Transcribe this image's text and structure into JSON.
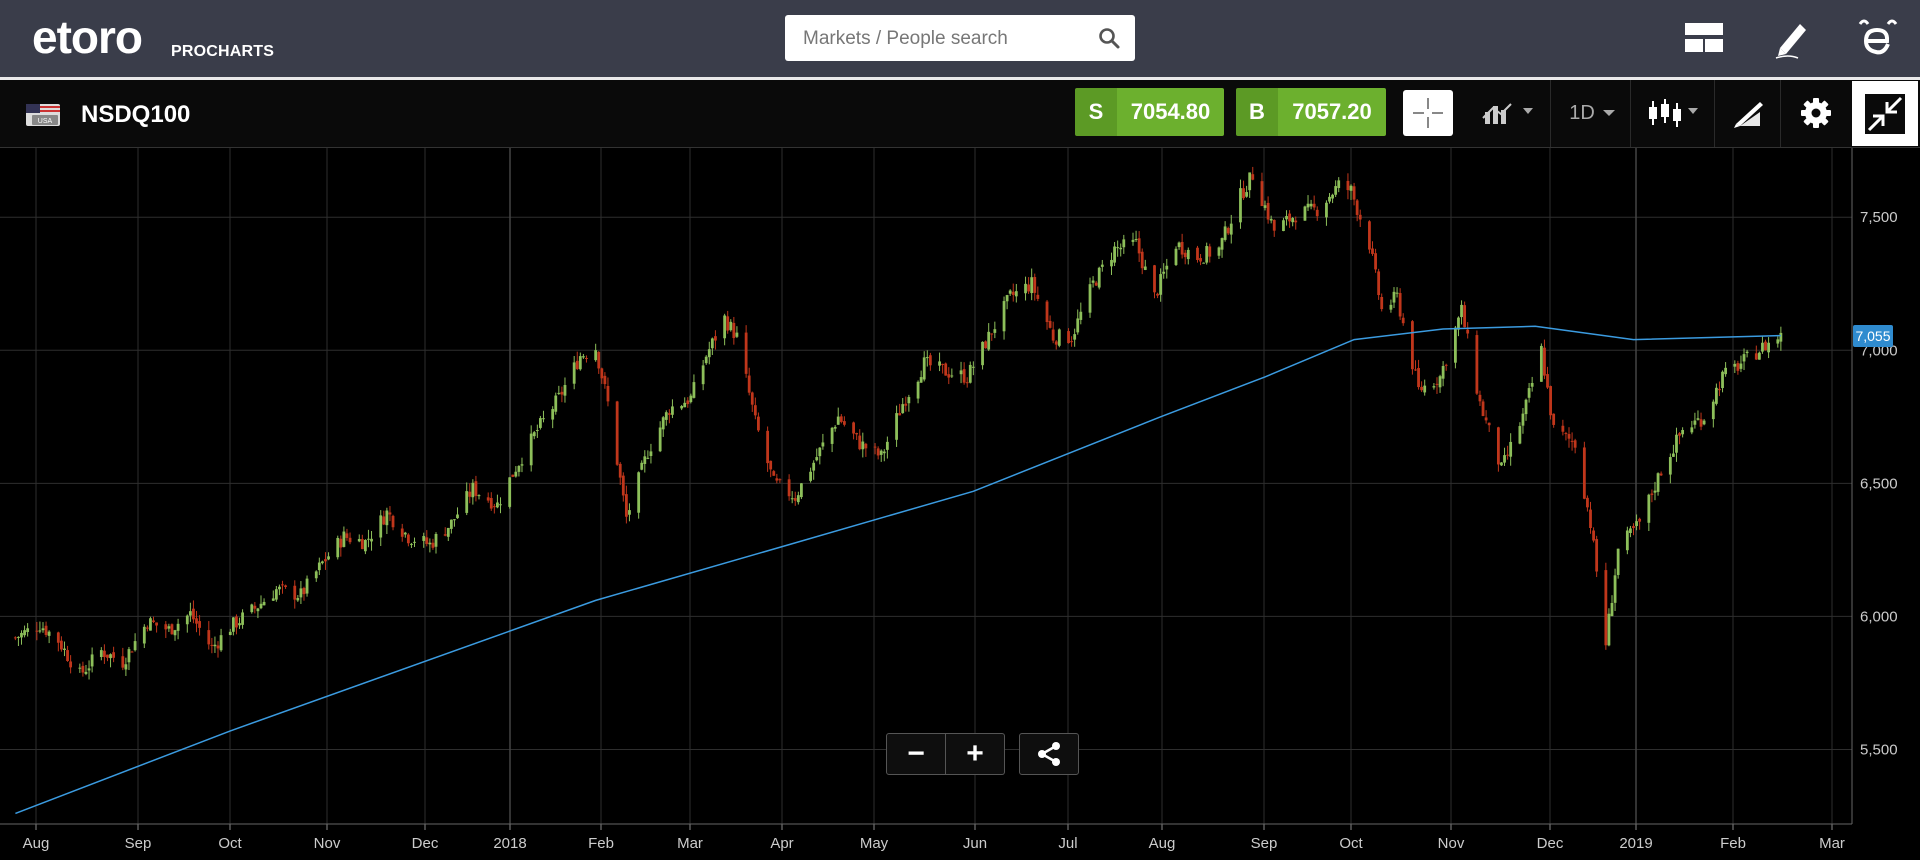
{
  "header": {
    "logo_text": "etoro",
    "logo_sub": "PROCHARTS",
    "search_placeholder": "Markets / People search",
    "icons": [
      "layout-icon",
      "edit-pen-icon",
      "etoro-e-icon"
    ]
  },
  "toolbar": {
    "symbol": "NSDQ100",
    "flag_label": "USA",
    "sell_label": "S",
    "sell_price": "7054.80",
    "buy_label": "B",
    "buy_price": "7057.20",
    "period": "1D",
    "icons": [
      "crosshair-icon",
      "compare-icon",
      "candlestick-icon",
      "drawing-icon",
      "gear-icon",
      "minimize-icon"
    ]
  },
  "controls": {
    "zoom_out": "−",
    "zoom_in": "+"
  },
  "colors": {
    "up": "#8dbf5a",
    "down": "#c0361b",
    "ma": "#3b9be0",
    "grid": "#2e2e2e",
    "buy_sell": "#6cb02e",
    "price_tag": "#2f8bcf"
  },
  "chart_data": {
    "type": "candlestick",
    "current_price_label": "7,055",
    "ylim": [
      5220,
      7760
    ],
    "y_ticks": [
      {
        "v": 5500,
        "label": "5,500"
      },
      {
        "v": 6000,
        "label": "6,000"
      },
      {
        "v": 6500,
        "label": "6,500"
      },
      {
        "v": 7000,
        "label": "7,000"
      },
      {
        "v": 7500,
        "label": "7,500"
      }
    ],
    "x_ticks": [
      "Aug",
      "Sep",
      "Oct",
      "Nov",
      "Dec",
      "2018",
      "Feb",
      "Mar",
      "Apr",
      "May",
      "Jun",
      "Jul",
      "Aug",
      "Sep",
      "Oct",
      "Nov",
      "Dec",
      "2019",
      "Feb",
      "Mar"
    ],
    "price_series": [
      {
        "d": "2017-07-24",
        "p": 5920
      },
      {
        "d": "2017-08-01",
        "p": 5970
      },
      {
        "d": "2017-08-07",
        "p": 5910
      },
      {
        "d": "2017-08-14",
        "p": 5780
      },
      {
        "d": "2017-08-21",
        "p": 5870
      },
      {
        "d": "2017-08-28",
        "p": 5830
      },
      {
        "d": "2017-09-05",
        "p": 5980
      },
      {
        "d": "2017-09-12",
        "p": 5950
      },
      {
        "d": "2017-09-19",
        "p": 6010
      },
      {
        "d": "2017-09-26",
        "p": 5880
      },
      {
        "d": "2017-10-02",
        "p": 5960
      },
      {
        "d": "2017-10-10",
        "p": 6030
      },
      {
        "d": "2017-10-17",
        "p": 6100
      },
      {
        "d": "2017-10-25",
        "p": 6080
      },
      {
        "d": "2017-11-01",
        "p": 6200
      },
      {
        "d": "2017-11-08",
        "p": 6300
      },
      {
        "d": "2017-11-15",
        "p": 6280
      },
      {
        "d": "2017-11-22",
        "p": 6390
      },
      {
        "d": "2017-11-29",
        "p": 6300
      },
      {
        "d": "2017-12-06",
        "p": 6270
      },
      {
        "d": "2017-12-13",
        "p": 6350
      },
      {
        "d": "2017-12-20",
        "p": 6480
      },
      {
        "d": "2017-12-28",
        "p": 6420
      },
      {
        "d": "2018-01-03",
        "p": 6560
      },
      {
        "d": "2018-01-10",
        "p": 6700
      },
      {
        "d": "2018-01-17",
        "p": 6820
      },
      {
        "d": "2018-01-24",
        "p": 6980
      },
      {
        "d": "2018-01-29",
        "p": 7010
      },
      {
        "d": "2018-02-02",
        "p": 6800
      },
      {
        "d": "2018-02-08",
        "p": 6370
      },
      {
        "d": "2018-02-15",
        "p": 6620
      },
      {
        "d": "2018-02-22",
        "p": 6780
      },
      {
        "d": "2018-03-01",
        "p": 6820
      },
      {
        "d": "2018-03-06",
        "p": 6980
      },
      {
        "d": "2018-03-12",
        "p": 7120
      },
      {
        "d": "2018-03-16",
        "p": 7050
      },
      {
        "d": "2018-03-22",
        "p": 6730
      },
      {
        "d": "2018-03-28",
        "p": 6500
      },
      {
        "d": "2018-04-04",
        "p": 6450
      },
      {
        "d": "2018-04-11",
        "p": 6600
      },
      {
        "d": "2018-04-18",
        "p": 6750
      },
      {
        "d": "2018-04-25",
        "p": 6650
      },
      {
        "d": "2018-05-02",
        "p": 6600
      },
      {
        "d": "2018-05-09",
        "p": 6800
      },
      {
        "d": "2018-05-16",
        "p": 6950
      },
      {
        "d": "2018-05-23",
        "p": 6920
      },
      {
        "d": "2018-05-30",
        "p": 6900
      },
      {
        "d": "2018-06-06",
        "p": 7050
      },
      {
        "d": "2018-06-13",
        "p": 7200
      },
      {
        "d": "2018-06-20",
        "p": 7250
      },
      {
        "d": "2018-06-27",
        "p": 7050
      },
      {
        "d": "2018-07-03",
        "p": 7050
      },
      {
        "d": "2018-07-10",
        "p": 7250
      },
      {
        "d": "2018-07-17",
        "p": 7380
      },
      {
        "d": "2018-07-24",
        "p": 7400
      },
      {
        "d": "2018-07-30",
        "p": 7200
      },
      {
        "d": "2018-08-06",
        "p": 7400
      },
      {
        "d": "2018-08-13",
        "p": 7350
      },
      {
        "d": "2018-08-20",
        "p": 7380
      },
      {
        "d": "2018-08-27",
        "p": 7580
      },
      {
        "d": "2018-08-31",
        "p": 7660
      },
      {
        "d": "2018-09-07",
        "p": 7450
      },
      {
        "d": "2018-09-14",
        "p": 7510
      },
      {
        "d": "2018-09-21",
        "p": 7530
      },
      {
        "d": "2018-09-28",
        "p": 7620
      },
      {
        "d": "2018-10-02",
        "p": 7600
      },
      {
        "d": "2018-10-08",
        "p": 7400
      },
      {
        "d": "2018-10-12",
        "p": 7150
      },
      {
        "d": "2018-10-17",
        "p": 7200
      },
      {
        "d": "2018-10-24",
        "p": 6850
      },
      {
        "d": "2018-10-31",
        "p": 6900
      },
      {
        "d": "2018-11-07",
        "p": 7150
      },
      {
        "d": "2018-11-13",
        "p": 6800
      },
      {
        "d": "2018-11-20",
        "p": 6550
      },
      {
        "d": "2018-11-27",
        "p": 6750
      },
      {
        "d": "2018-12-03",
        "p": 7000
      },
      {
        "d": "2018-12-07",
        "p": 6700
      },
      {
        "d": "2018-12-14",
        "p": 6650
      },
      {
        "d": "2018-12-19",
        "p": 6350
      },
      {
        "d": "2018-12-24",
        "p": 5900
      },
      {
        "d": "2018-12-28",
        "p": 6250
      },
      {
        "d": "2019-01-04",
        "p": 6350
      },
      {
        "d": "2019-01-11",
        "p": 6550
      },
      {
        "d": "2019-01-18",
        "p": 6700
      },
      {
        "d": "2019-01-25",
        "p": 6750
      },
      {
        "d": "2019-01-31",
        "p": 6900
      },
      {
        "d": "2019-02-06",
        "p": 6950
      },
      {
        "d": "2019-02-13",
        "p": 7010
      },
      {
        "d": "2019-02-19",
        "p": 7055
      }
    ],
    "ma_series": [
      {
        "d": "2017-07-24",
        "p": 5260
      },
      {
        "d": "2017-10-02",
        "p": 5570
      },
      {
        "d": "2018-01-29",
        "p": 6060
      },
      {
        "d": "2018-04-02",
        "p": 6270
      },
      {
        "d": "2018-06-01",
        "p": 6470
      },
      {
        "d": "2018-08-01",
        "p": 6750
      },
      {
        "d": "2018-09-04",
        "p": 6900
      },
      {
        "d": "2018-10-03",
        "p": 7040
      },
      {
        "d": "2018-11-01",
        "p": 7080
      },
      {
        "d": "2018-12-01",
        "p": 7090
      },
      {
        "d": "2019-01-02",
        "p": 7040
      },
      {
        "d": "2019-02-19",
        "p": 7055
      }
    ]
  }
}
